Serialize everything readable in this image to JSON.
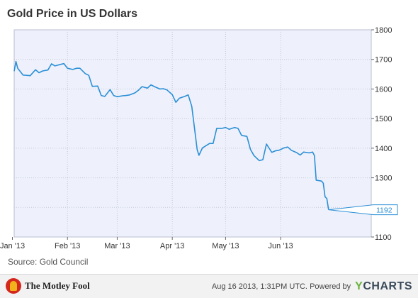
{
  "title": "Gold Price in US Dollars",
  "source": "Source: Gold Council",
  "brand": "The Motley Fool",
  "footer": {
    "timestamp": "Aug 16 2013, 1:31PM UTC.",
    "powered_by": "Powered by",
    "provider": "CHARTS",
    "provider_letter": "Y"
  },
  "colors": {
    "line": "#2b8fd6",
    "plot_bg": "#eef1fb",
    "grid": "#c4c9d9",
    "axis": "#666666",
    "brand_accent": "#d5281d",
    "provider_accent": "#6cb33f"
  },
  "chart_data": {
    "type": "line",
    "title": "Gold Price in US Dollars",
    "x_tick_labels": [
      "Jan '13",
      "Feb '13",
      "Mar '13",
      "Apr '13",
      "May '13",
      "Jun '13"
    ],
    "y_ticks": [
      1100,
      1200,
      1300,
      1400,
      1500,
      1600,
      1700,
      1800
    ],
    "ylim": [
      1100,
      1800
    ],
    "xlim": [
      "2013-01-02",
      "2013-07-22"
    ],
    "grid": true,
    "y_axis_side": "right",
    "last_value_label": "1192",
    "series": [
      {
        "x": [
          "2013-01-02",
          "2013-01-03",
          "2013-01-04",
          "2013-01-07",
          "2013-01-09",
          "2013-01-11",
          "2013-01-14",
          "2013-01-16",
          "2013-01-18",
          "2013-01-21",
          "2013-01-23",
          "2013-01-25",
          "2013-01-28",
          "2013-01-30",
          "2013-02-01",
          "2013-02-04",
          "2013-02-06",
          "2013-02-08",
          "2013-02-11",
          "2013-02-13",
          "2013-02-15",
          "2013-02-18",
          "2013-02-20",
          "2013-02-22",
          "2013-02-25",
          "2013-02-27",
          "2013-03-01",
          "2013-03-04",
          "2013-03-06",
          "2013-03-08",
          "2013-03-11",
          "2013-03-13",
          "2013-03-15",
          "2013-03-18",
          "2013-03-20",
          "2013-03-22",
          "2013-03-25",
          "2013-03-27",
          "2013-03-29",
          "2013-04-01",
          "2013-04-03",
          "2013-04-05",
          "2013-04-08",
          "2013-04-10",
          "2013-04-12",
          "2013-04-15",
          "2013-04-16",
          "2013-04-18",
          "2013-04-22",
          "2013-04-24",
          "2013-04-26",
          "2013-04-29",
          "2013-05-01",
          "2013-05-03",
          "2013-05-06",
          "2013-05-08",
          "2013-05-10",
          "2013-05-13",
          "2013-05-15",
          "2013-05-17",
          "2013-05-20",
          "2013-05-22",
          "2013-05-24",
          "2013-05-27",
          "2013-05-29",
          "2013-05-31",
          "2013-06-03",
          "2013-06-05",
          "2013-06-07",
          "2013-06-10",
          "2013-06-12",
          "2013-06-14",
          "2013-06-17",
          "2013-06-19",
          "2013-06-20",
          "2013-06-21",
          "2013-06-24",
          "2013-06-25",
          "2013-06-26",
          "2013-06-27",
          "2013-06-28"
        ],
        "values": [
          1660,
          1693,
          1670,
          1647,
          1646,
          1645,
          1665,
          1655,
          1661,
          1664,
          1685,
          1678,
          1683,
          1686,
          1670,
          1666,
          1670,
          1670,
          1652,
          1646,
          1609,
          1610,
          1578,
          1575,
          1598,
          1578,
          1574,
          1577,
          1578,
          1580,
          1587,
          1596,
          1608,
          1603,
          1614,
          1608,
          1600,
          1601,
          1597,
          1581,
          1555,
          1569,
          1575,
          1580,
          1541,
          1395,
          1376,
          1401,
          1416,
          1416,
          1467,
          1467,
          1470,
          1464,
          1470,
          1467,
          1443,
          1440,
          1396,
          1375,
          1358,
          1361,
          1414,
          1386,
          1391,
          1393,
          1401,
          1404,
          1393,
          1385,
          1377,
          1387,
          1384,
          1387,
          1375,
          1292,
          1289,
          1282,
          1236,
          1230,
          1192
        ]
      }
    ]
  }
}
